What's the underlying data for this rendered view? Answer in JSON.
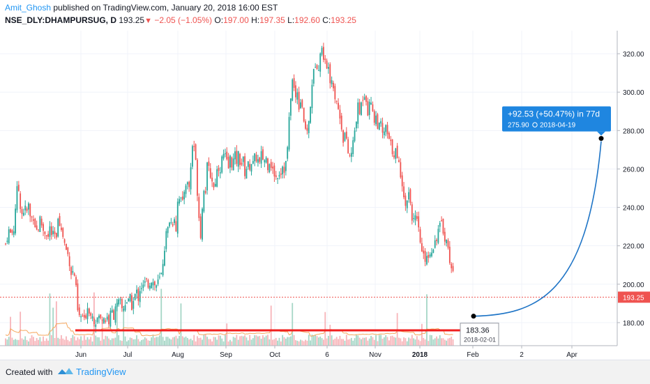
{
  "header": {
    "author": "Amit_Ghosh",
    "published": " published on TradingView.com, January 20, 2018 16:00 EST",
    "symbol": "NSE_DLY:DHAMPURSUG, D",
    "last": "193.25",
    "down_arrow": "▼",
    "change": "−2.05 (−1.05%)",
    "o_label": "O:",
    "o_value": "197.00",
    "h_label": "H:",
    "h_value": "197.35",
    "l_label": "L:",
    "l_value": "192.60",
    "c_label": "C:",
    "c_value": "193.25"
  },
  "footer": {
    "created_with": "Created with",
    "brand": "TradingView"
  },
  "colors": {
    "up": "#26a69a",
    "down": "#ef5350",
    "vol_up": "#a5d6c6",
    "vol_down": "#f7b4b9",
    "ma": "#f6a75d",
    "support": "#f01e1e",
    "projection": "#1e74c6",
    "label_bg": "#1f86e0"
  },
  "chart_data": {
    "type": "candlestick",
    "x_ticks": [
      "Jun",
      "Jul",
      "Aug",
      "Sep",
      "Oct",
      "6",
      "Nov",
      "2018",
      "Feb",
      "2",
      "Apr"
    ],
    "x_tick_bold": [
      false,
      false,
      false,
      false,
      false,
      false,
      false,
      true,
      false,
      false,
      false
    ],
    "y_ticks": [
      "180.00",
      "200.00",
      "220.00",
      "240.00",
      "260.00",
      "280.00",
      "300.00",
      "320.00"
    ],
    "ylim": [
      168,
      332
    ],
    "last_price_label": "193.25",
    "last_price": 193.25,
    "support_level": 176,
    "anchor": {
      "price": 183.36,
      "price_label": "183.36",
      "date_label": "2018-02-01"
    },
    "target": {
      "price": 275.9,
      "change_label": "+92.53 (+50.47%) in 77d",
      "price_label": "275.90",
      "date_label": "2018-04-19"
    },
    "close_path": [
      [
        0,
        221
      ],
      [
        4,
        228
      ],
      [
        8,
        226
      ],
      [
        12,
        229
      ],
      [
        15,
        245
      ],
      [
        18,
        252
      ],
      [
        21,
        242
      ],
      [
        24,
        236
      ],
      [
        27,
        240
      ],
      [
        30,
        237
      ],
      [
        33,
        241
      ],
      [
        36,
        233
      ],
      [
        40,
        236
      ],
      [
        43,
        230
      ],
      [
        46,
        227
      ],
      [
        49,
        234
      ],
      [
        52,
        231
      ],
      [
        55,
        227
      ],
      [
        58,
        228
      ],
      [
        61,
        224
      ],
      [
        64,
        230
      ],
      [
        67,
        224
      ],
      [
        70,
        226
      ],
      [
        73,
        222
      ],
      [
        76,
        240
      ],
      [
        79,
        228
      ],
      [
        82,
        226
      ],
      [
        86,
        219
      ],
      [
        89,
        216
      ],
      [
        92,
        212
      ],
      [
        95,
        204
      ],
      [
        98,
        208
      ],
      [
        101,
        198
      ],
      [
        104,
        184
      ],
      [
        107,
        182
      ],
      [
        110,
        184
      ],
      [
        113,
        180
      ],
      [
        116,
        186
      ],
      [
        119,
        190
      ],
      [
        122,
        183
      ],
      [
        125,
        186
      ],
      [
        128,
        180
      ],
      [
        131,
        182
      ],
      [
        134,
        183
      ],
      [
        137,
        181
      ],
      [
        140,
        185
      ],
      [
        143,
        181
      ],
      [
        146,
        183
      ],
      [
        149,
        180
      ],
      [
        152,
        187
      ],
      [
        155,
        183
      ],
      [
        158,
        190
      ],
      [
        161,
        188
      ],
      [
        164,
        191
      ],
      [
        167,
        187
      ],
      [
        170,
        188
      ],
      [
        173,
        192
      ],
      [
        176,
        190
      ],
      [
        179,
        192
      ],
      [
        182,
        188
      ],
      [
        185,
        193
      ],
      [
        188,
        196
      ],
      [
        191,
        193
      ],
      [
        194,
        200
      ],
      [
        197,
        198
      ],
      [
        200,
        200
      ],
      [
        203,
        201
      ],
      [
        206,
        200
      ],
      [
        209,
        203
      ],
      [
        212,
        201
      ],
      [
        215,
        199
      ],
      [
        218,
        200
      ],
      [
        221,
        202
      ],
      [
        224,
        205
      ],
      [
        227,
        215
      ],
      [
        230,
        225
      ],
      [
        233,
        228
      ],
      [
        236,
        235
      ],
      [
        239,
        230
      ],
      [
        242,
        237
      ],
      [
        245,
        229
      ],
      [
        248,
        248
      ],
      [
        251,
        245
      ],
      [
        254,
        240
      ],
      [
        257,
        250
      ],
      [
        260,
        255
      ],
      [
        263,
        248
      ],
      [
        266,
        260
      ],
      [
        269,
        275
      ],
      [
        272,
        270
      ],
      [
        275,
        252
      ],
      [
        278,
        235
      ],
      [
        281,
        224
      ],
      [
        284,
        252
      ],
      [
        287,
        248
      ],
      [
        290,
        262
      ],
      [
        293,
        258
      ],
      [
        296,
        256
      ],
      [
        299,
        250
      ],
      [
        302,
        255
      ],
      [
        305,
        262
      ],
      [
        308,
        260
      ],
      [
        311,
        265
      ],
      [
        314,
        268
      ],
      [
        317,
        264
      ],
      [
        320,
        260
      ],
      [
        323,
        266
      ],
      [
        326,
        262
      ],
      [
        329,
        267
      ],
      [
        332,
        264
      ],
      [
        335,
        268
      ],
      [
        338,
        262
      ],
      [
        341,
        265
      ],
      [
        344,
        258
      ],
      [
        347,
        262
      ],
      [
        350,
        261
      ],
      [
        353,
        264
      ],
      [
        356,
        262
      ],
      [
        359,
        267
      ],
      [
        362,
        265
      ],
      [
        365,
        262
      ],
      [
        368,
        268
      ],
      [
        371,
        264
      ],
      [
        374,
        266
      ],
      [
        377,
        262
      ],
      [
        380,
        266
      ],
      [
        383,
        259
      ],
      [
        386,
        258
      ],
      [
        389,
        255
      ],
      [
        392,
        259
      ],
      [
        395,
        258
      ],
      [
        398,
        262
      ],
      [
        401,
        260
      ],
      [
        404,
        265
      ],
      [
        407,
        282
      ],
      [
        410,
        300
      ],
      [
        413,
        308
      ],
      [
        416,
        295
      ],
      [
        419,
        302
      ],
      [
        422,
        292
      ],
      [
        425,
        298
      ],
      [
        428,
        287
      ],
      [
        431,
        278
      ],
      [
        434,
        282
      ],
      [
        437,
        285
      ],
      [
        440,
        305
      ],
      [
        443,
        310
      ],
      [
        446,
        318
      ],
      [
        449,
        312
      ],
      [
        452,
        320
      ],
      [
        455,
        322
      ],
      [
        458,
        318
      ],
      [
        461,
        310
      ],
      [
        464,
        316
      ],
      [
        467,
        305
      ],
      [
        470,
        308
      ],
      [
        473,
        298
      ],
      [
        476,
        296
      ],
      [
        479,
        288
      ],
      [
        482,
        285
      ],
      [
        485,
        276
      ],
      [
        488,
        279
      ],
      [
        491,
        270
      ],
      [
        494,
        266
      ],
      [
        497,
        268
      ],
      [
        500,
        275
      ],
      [
        503,
        284
      ],
      [
        506,
        292
      ],
      [
        509,
        289
      ],
      [
        512,
        296
      ],
      [
        515,
        300
      ],
      [
        518,
        298
      ],
      [
        521,
        288
      ],
      [
        524,
        296
      ],
      [
        527,
        294
      ],
      [
        530,
        284
      ],
      [
        533,
        288
      ],
      [
        536,
        280
      ],
      [
        539,
        284
      ],
      [
        542,
        276
      ],
      [
        545,
        282
      ],
      [
        548,
        279
      ],
      [
        551,
        274
      ],
      [
        554,
        272
      ],
      [
        557,
        268
      ],
      [
        560,
        270
      ],
      [
        563,
        264
      ],
      [
        566,
        261
      ],
      [
        569,
        256
      ],
      [
        572,
        248
      ],
      [
        575,
        238
      ],
      [
        578,
        250
      ],
      [
        581,
        245
      ],
      [
        584,
        236
      ],
      [
        587,
        232
      ],
      [
        590,
        234
      ],
      [
        593,
        228
      ],
      [
        596,
        222
      ],
      [
        599,
        214
      ],
      [
        602,
        213
      ],
      [
        605,
        216
      ],
      [
        608,
        214
      ],
      [
        611,
        218
      ],
      [
        614,
        220
      ],
      [
        617,
        222
      ],
      [
        620,
        226
      ],
      [
        623,
        229
      ],
      [
        626,
        231
      ],
      [
        629,
        228
      ],
      [
        632,
        224
      ],
      [
        635,
        220
      ],
      [
        638,
        214
      ],
      [
        641,
        208
      ],
      [
        644,
        202
      ],
      [
        647,
        197
      ],
      [
        650,
        193.25
      ]
    ]
  }
}
